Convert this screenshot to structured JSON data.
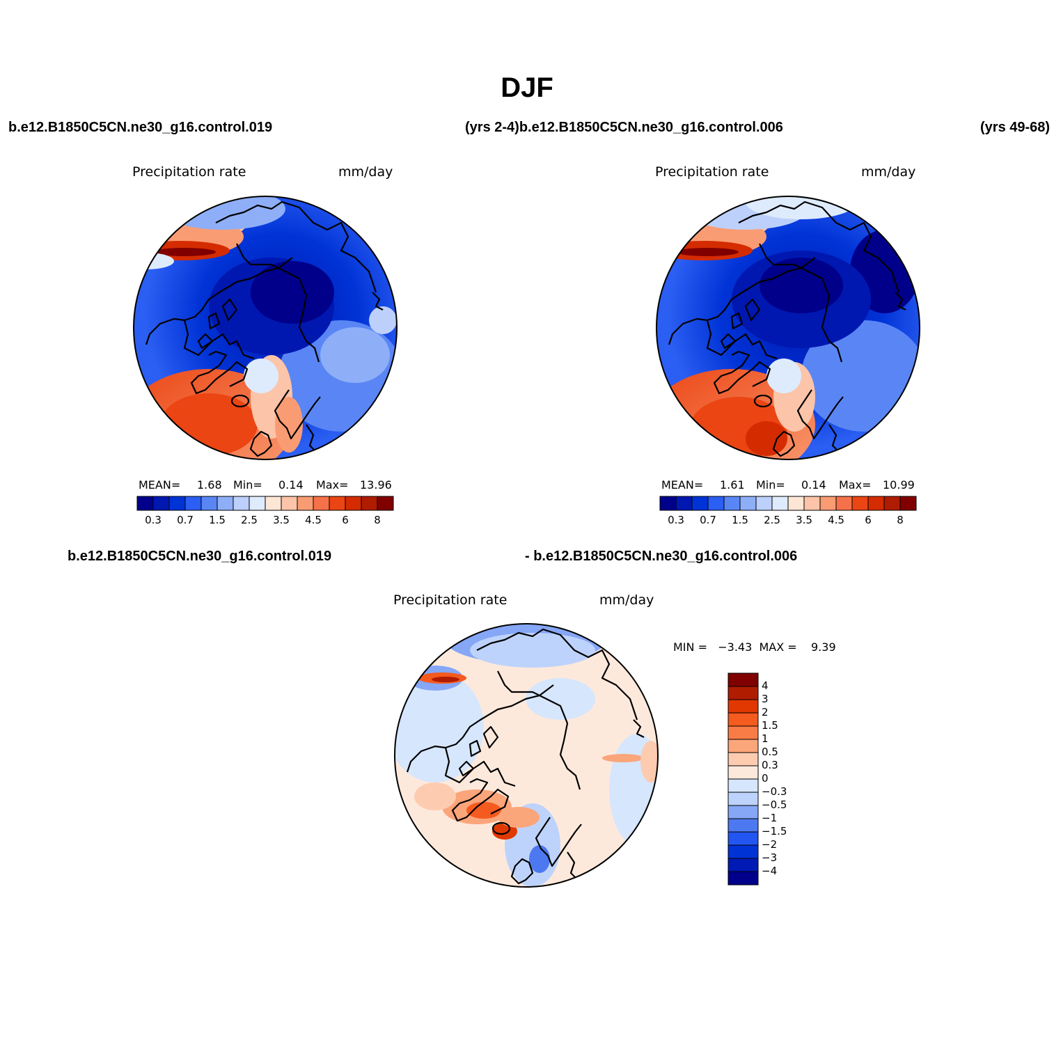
{
  "title": "DJF",
  "headers": {
    "left_case": "b.e12.B1850C5CN.ne30_g16.control.019",
    "mid_case": "(yrs 2-4)b.e12.B1850C5CN.ne30_g16.control.006",
    "right_years": "(yrs 49-68)",
    "diff_left": "b.e12.B1850C5CN.ne30_g16.control.019",
    "diff_right": "- b.e12.B1850C5CN.ne30_g16.control.006"
  },
  "panels": [
    {
      "variable": "Precipitation  rate",
      "units": "mm/day",
      "mean_label": "MEAN=",
      "mean": "1.68",
      "min_label": "Min=",
      "min": "0.14",
      "max_label": "Max=",
      "max": "13.96"
    },
    {
      "variable": "Precipitation  rate",
      "units": "mm/day",
      "mean_label": "MEAN=",
      "mean": "1.61",
      "min_label": "Min=",
      "min": "0.14",
      "max_label": "Max=",
      "max": "10.99"
    },
    {
      "variable": "Precipitation  rate",
      "units": "mm/day",
      "stats": "MIN =   −3.43  MAX =    9.39"
    }
  ],
  "colorbar_main": {
    "colors": [
      "#00008b",
      "#0018b0",
      "#0033d6",
      "#2b5ef2",
      "#5a86f5",
      "#8eaff8",
      "#bdd0fb",
      "#deebfd",
      "#fde6d6",
      "#fcc4a8",
      "#fa9c73",
      "#f5714a",
      "#eb4514",
      "#d42c00",
      "#b01c00",
      "#800000"
    ],
    "labels": [
      "0.3",
      "0.7",
      "1.5",
      "2.5",
      "3.5",
      "4.5",
      "6",
      "8"
    ]
  },
  "colorbar_diff": {
    "colors": [
      "#800000",
      "#b01c00",
      "#e03800",
      "#f55a1e",
      "#f97c46",
      "#fba57a",
      "#fdccb0",
      "#fde9dc",
      "#d6e6fd",
      "#bed3fb",
      "#86a6f6",
      "#4d79f0",
      "#2356f0",
      "#0033d6",
      "#001ab5",
      "#00008b"
    ],
    "labels": [
      "4",
      "3",
      "2",
      "1.5",
      "1",
      "0.5",
      "0.3",
      "0",
      "−0.3",
      "−0.5",
      "−1",
      "−1.5",
      "−2",
      "−3",
      "−4"
    ]
  }
}
